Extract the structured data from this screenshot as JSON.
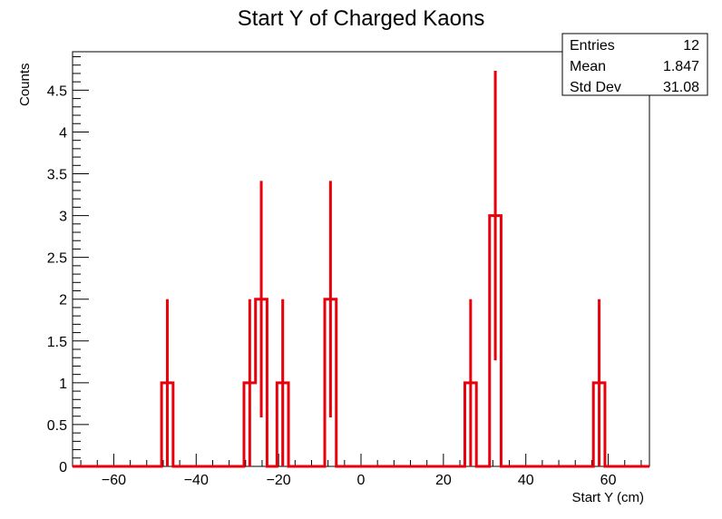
{
  "chart_data": {
    "type": "histogram",
    "title": "Start Y of Charged Kaons",
    "xlabel": "Start Y (cm)",
    "ylabel": "Counts",
    "xlim": [
      -70,
      70
    ],
    "ylim": [
      0,
      4.96
    ],
    "x_ticks": [
      -60,
      -40,
      -20,
      0,
      20,
      40,
      60
    ],
    "y_ticks": [
      0,
      0.5,
      1,
      1.5,
      2,
      2.5,
      3,
      3.5,
      4,
      4.5
    ],
    "x_tick_labels": [
      "−60",
      "−40",
      "−20",
      "0",
      "20",
      "40",
      "60"
    ],
    "y_tick_labels": [
      "0",
      "0.5",
      "1",
      "1.5",
      "2",
      "2.5",
      "3",
      "3.5",
      "4",
      "4.5"
    ],
    "bin_width": 2.8,
    "bins": [
      {
        "x": -47.0,
        "count": 1
      },
      {
        "x": -27.0,
        "count": 1
      },
      {
        "x": -24.2,
        "count": 2
      },
      {
        "x": -19.0,
        "count": 1
      },
      {
        "x": -7.4,
        "count": 2
      },
      {
        "x": 26.6,
        "count": 1
      },
      {
        "x": 32.6,
        "count": 3
      },
      {
        "x": 57.8,
        "count": 1
      }
    ],
    "color": "#e8000b",
    "stats": {
      "entries_label": "Entries",
      "entries": "12",
      "mean_label": "Mean",
      "mean": "1.847",
      "std_label": "Std Dev",
      "std": "31.08"
    }
  }
}
